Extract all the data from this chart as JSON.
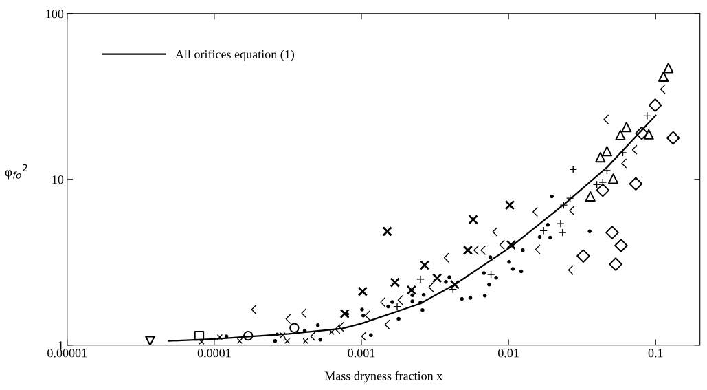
{
  "chart_data": {
    "type": "scatter",
    "xlabel": "Mass dryness fraction x",
    "ylabel": "φ$_{fo}$$^{2}$",
    "log": "xy",
    "grid": false,
    "legend": "top left",
    "xlim": [
      1e-05,
      0.2
    ],
    "ylim": [
      1,
      100
    ],
    "xticks": [
      {
        "value": 1e-05,
        "label": "0.00001"
      },
      {
        "value": 0.0001,
        "label": "0.0001"
      },
      {
        "value": 0.001,
        "label": "0.001"
      },
      {
        "value": 0.01,
        "label": "0.01"
      },
      {
        "value": 0.1,
        "label": "0.1"
      }
    ],
    "yticks": [
      1,
      10,
      100
    ],
    "series": [
      {
        "name": "All orifices equation (1)",
        "type": "line",
        "color": "#000000",
        "line_style": "solid",
        "marker": "none",
        "x": [
          4.9e-05,
          0.0001,
          0.00032,
          0.00074,
          0.001,
          0.0025,
          0.0043,
          0.0103,
          0.024,
          0.047,
          0.1
        ],
        "values": [
          1.06,
          1.09,
          1.17,
          1.26,
          1.35,
          1.78,
          2.32,
          3.9,
          7.1,
          11.9,
          24.3
        ]
      },
      {
        "color": "#000000",
        "marker": "circle_filled",
        "x": [
          0.000121,
          0.000259,
          0.000267,
          0.000412,
          0.000526,
          0.000506,
          0.0008,
          0.00101,
          0.00103,
          0.00116,
          0.00152,
          0.00162,
          0.00179,
          0.00222,
          0.00222,
          0.00252,
          0.0026,
          0.00265,
          0.00375,
          0.00396,
          0.00482,
          0.0055,
          0.0069,
          0.0068,
          0.00738,
          0.00752,
          0.00824,
          0.0101,
          0.0107,
          0.0122,
          0.0125,
          0.0163,
          0.0185,
          0.0192,
          0.0197,
          0.0356
        ],
        "values": [
          1.13,
          1.06,
          1.16,
          1.22,
          1.08,
          1.32,
          1.54,
          1.64,
          1.51,
          1.15,
          1.71,
          1.82,
          1.44,
          2.0,
          1.84,
          1.81,
          1.63,
          2.01,
          2.41,
          2.57,
          1.9,
          1.93,
          1.99,
          2.72,
          2.32,
          3.39,
          2.55,
          3.18,
          2.88,
          2.79,
          3.74,
          4.49,
          5.32,
          4.45,
          7.9,
          4.86
        ]
      },
      {
        "color": "#000000",
        "marker": "cross",
        "x": [
          0.00077,
          0.00102,
          0.0015,
          0.00169,
          0.00219,
          0.00269,
          0.00327,
          0.00431,
          0.00529,
          0.00575,
          0.0102,
          0.0104
        ],
        "values": [
          1.55,
          2.11,
          4.86,
          2.39,
          2.15,
          3.04,
          2.54,
          2.32,
          3.74,
          5.72,
          7.0,
          4.03
        ]
      },
      {
        "color": "#000000",
        "marker": "x",
        "x": [
          8.2e-05,
          0.000109,
          0.000149,
          0.000292,
          0.000313,
          0.000417,
          0.000628
        ],
        "values": [
          1.05,
          1.12,
          1.06,
          1.15,
          1.06,
          1.06,
          1.2
        ]
      },
      {
        "color": "#000000",
        "marker": "plus",
        "x": [
          0.00175,
          0.00252,
          0.00419,
          0.0076,
          0.0173,
          0.0226,
          0.0233,
          0.0237,
          0.0262,
          0.0275,
          0.0398,
          0.0437,
          0.0467,
          0.0598,
          0.0875
        ],
        "values": [
          1.71,
          2.5,
          2.17,
          2.67,
          4.91,
          5.41,
          4.78,
          7.0,
          7.7,
          11.5,
          9.3,
          9.6,
          11.3,
          14.5,
          24.2
        ]
      },
      {
        "color": "#000000",
        "x": [
          0.000186,
          0.000318,
          0.000407,
          0.000469,
          0.00069,
          0.00073,
          0.0011,
          0.00104,
          0.0014,
          0.0015,
          0.00184,
          0.00298,
          0.00379,
          0.00603,
          0.00673,
          0.0081,
          0.00905,
          0.0152,
          0.0158,
          0.0265,
          0.027,
          0.0461,
          0.061,
          0.072,
          0.112
        ],
        "values": [
          1.64,
          1.44,
          1.56,
          1.13,
          1.25,
          1.29,
          1.51,
          1.13,
          1.82,
          1.33,
          1.87,
          2.24,
          3.37,
          3.74,
          3.74,
          4.83,
          4.03,
          6.37,
          3.78,
          2.84,
          6.48,
          23,
          12.5,
          15.1,
          35
        ]
      },
      {
        "color": "#000000",
        "marker": "triangle",
        "x": [
          0.122,
          0.113,
          0.0633,
          0.0576,
          0.0467,
          0.0421,
          0.036,
          0.0897,
          0.0515
        ],
        "values": [
          47,
          41.7,
          20.7,
          18.5,
          14.8,
          13.6,
          7.9,
          18.7,
          10.1
        ]
      },
      {
        "color": "#000000",
        "marker": "diamond",
        "x": [
          0.0993,
          0.0804,
          0.1315,
          0.0733,
          0.0437,
          0.0506,
          0.0582,
          0.0322,
          0.0535
        ],
        "values": [
          28,
          19,
          17.8,
          9.4,
          8.6,
          4.78,
          3.99,
          3.45,
          3.08
        ]
      },
      {
        "color": "#000000",
        "marker": "square",
        "x": [
          7.9e-05
        ],
        "values": [
          1.14
        ]
      },
      {
        "color": "#000000",
        "marker": "circle",
        "x": [
          0.00017,
          0.00035
        ],
        "values": [
          1.14,
          1.27
        ]
      },
      {
        "color": "#000000",
        "marker": "triangle_down",
        "x": [
          3.66e-05
        ],
        "values": [
          1.06
        ]
      }
    ]
  }
}
